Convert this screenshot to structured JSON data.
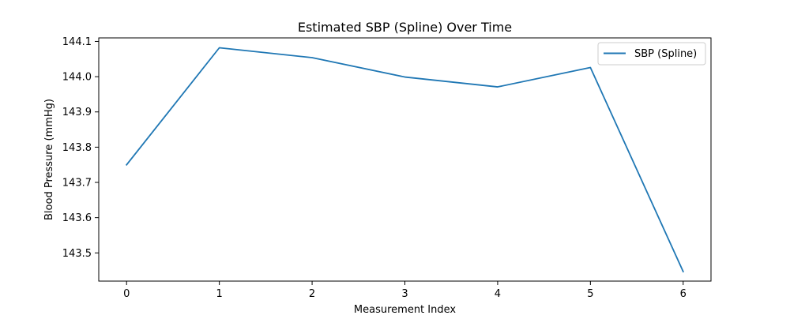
{
  "chart_data": {
    "type": "line",
    "title": "Estimated SBP (Spline) Over Time",
    "xlabel": "Measurement Index",
    "ylabel": "Blood Pressure (mmHg)",
    "x": [
      0,
      1,
      2,
      3,
      4,
      5,
      6
    ],
    "series": [
      {
        "name": "SBP (Spline)",
        "color": "#1f77b4",
        "values": [
          143.75,
          144.082,
          144.054,
          143.999,
          143.971,
          144.026,
          143.447
        ]
      }
    ],
    "xlim": [
      -0.3,
      6.3
    ],
    "ylim": [
      143.42,
      144.11
    ],
    "xticks": [
      "0",
      "1",
      "2",
      "3",
      "4",
      "5",
      "6"
    ],
    "yticks": [
      "143.5",
      "143.6",
      "143.7",
      "143.8",
      "143.9",
      "144.0",
      "144.1"
    ],
    "ytick_values": [
      143.5,
      143.6,
      143.7,
      143.8,
      143.9,
      144.0,
      144.1
    ],
    "legend_position": "top-right",
    "grid": false
  }
}
